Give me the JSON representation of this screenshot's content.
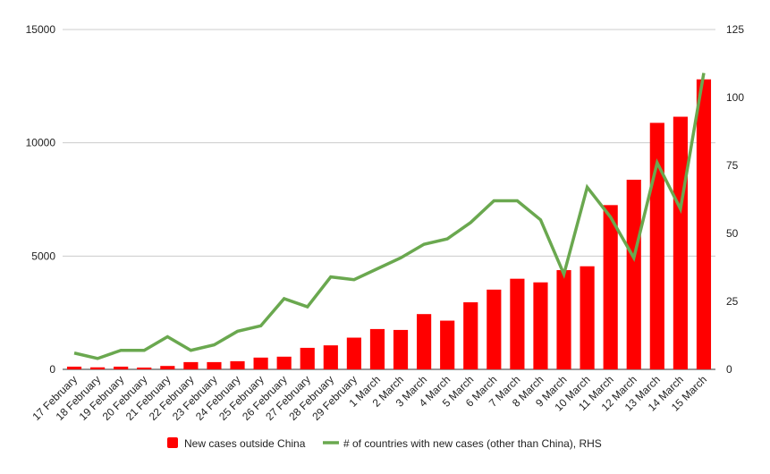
{
  "chart_data": {
    "type": "bar",
    "categories": [
      "17 February",
      "18 February",
      "19 February",
      "20 February",
      "21 February",
      "22 February",
      "23 February",
      "24 February",
      "25 February",
      "26 February",
      "27 February",
      "28 February",
      "29 February",
      "1 March",
      "2 March",
      "3 March",
      "4 March",
      "5 March",
      "6 March",
      "7 March",
      "8 March",
      "9 March",
      "10 March",
      "11 March",
      "12 March",
      "13 March",
      "14 March",
      "15 March"
    ],
    "series": [
      {
        "name": "New cases outside China",
        "type": "bar",
        "axis": "left",
        "color": "#ff0000",
        "values": [
          120,
          90,
          120,
          80,
          150,
          320,
          320,
          360,
          520,
          560,
          950,
          1060,
          1400,
          1780,
          1740,
          2440,
          2150,
          2960,
          3520,
          4000,
          3840,
          4380,
          4550,
          7250,
          8370,
          10880,
          11150,
          12800
        ]
      },
      {
        "name": "# of countries with new cases (other than China), RHS",
        "type": "line",
        "axis": "right",
        "color": "#6aa84f",
        "values": [
          6,
          4,
          7,
          7,
          12,
          7,
          9,
          14,
          16,
          26,
          23,
          34,
          33,
          37,
          41,
          46,
          48,
          54,
          62,
          62,
          55,
          35,
          67,
          56,
          41,
          76,
          59,
          109
        ]
      }
    ],
    "y_left": {
      "min": 0,
      "max": 15000,
      "ticks": [
        "0",
        "5000",
        "10000",
        "15000"
      ]
    },
    "y_right": {
      "min": 0,
      "max": 125,
      "ticks": [
        "0",
        "25",
        "50",
        "75",
        "100",
        "125"
      ]
    },
    "grid": true,
    "legend_position": "bottom"
  }
}
